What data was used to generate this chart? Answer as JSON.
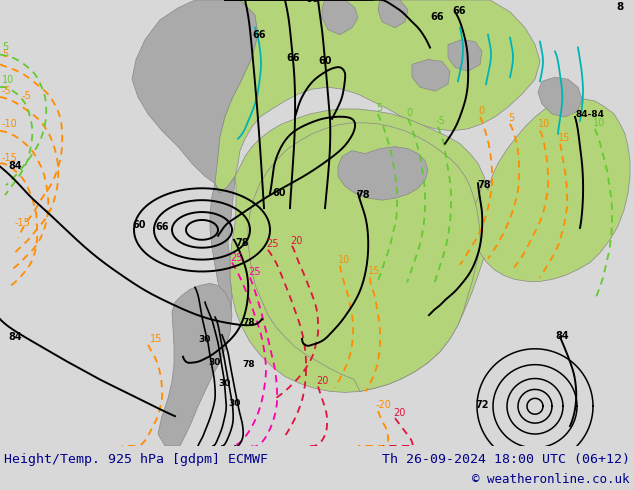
{
  "title_left": "Height/Temp. 925 hPa [gdpm] ECMWF",
  "title_right": "Th 26-09-2024 18:00 UTC (06+12)",
  "copyright": "© weatheronline.co.uk",
  "bg_color": "#d8d8d8",
  "ocean_color": "#d8d8d8",
  "land_green": "#b4d47a",
  "land_gray": "#aaaaaa",
  "text_color": "#00008B",
  "font_size_title": 9.5,
  "font_size_copyright": 9,
  "figsize": [
    6.34,
    4.9
  ],
  "dpi": 100
}
